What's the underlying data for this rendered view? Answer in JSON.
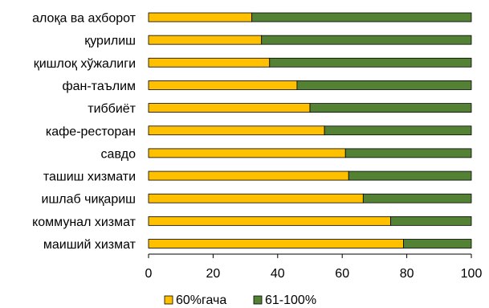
{
  "chart_data": {
    "type": "bar",
    "orientation": "horizontal",
    "stacked": true,
    "categories": [
      "алоқа ва ахборот",
      "қурилиш",
      "қишлоқ хўжалиги",
      "фан-таълим",
      "тиббиёт",
      "кафе-ресторан",
      "савдо",
      "ташиш хизмати",
      "ишлаб чиқариш",
      "коммунал хизмат",
      "маиший хизмат"
    ],
    "series": [
      {
        "name": "60%гача",
        "color": "#FFC000",
        "values": [
          32,
          35,
          37.5,
          46,
          50,
          54.5,
          61,
          62,
          66.5,
          75,
          79
        ]
      },
      {
        "name": "61-100%",
        "color": "#548235",
        "values": [
          68,
          65,
          62.5,
          54,
          50,
          45.5,
          39,
          38,
          33.5,
          25,
          21
        ]
      }
    ],
    "xlim": [
      0,
      100
    ],
    "xticks": [
      "0",
      "20",
      "40",
      "60",
      "80",
      "100"
    ],
    "grid": false,
    "legend": "bottom"
  }
}
